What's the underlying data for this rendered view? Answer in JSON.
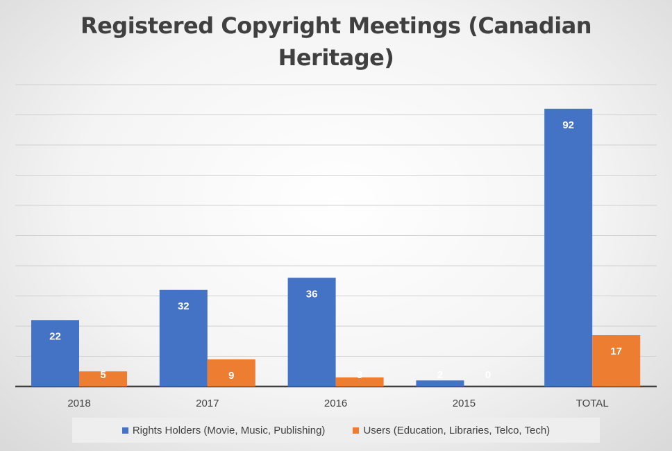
{
  "chart_data": {
    "type": "bar",
    "title": "Registered Copyright Meetings (Canadian Heritage)",
    "title_lines": [
      "Registered Copyright Meetings (Canadian",
      "Heritage)"
    ],
    "categories": [
      "2018",
      "2017",
      "2016",
      "2015",
      "TOTAL"
    ],
    "series": [
      {
        "name": "Rights Holders (Movie, Music, Publishing)",
        "values": [
          22,
          32,
          36,
          2,
          92
        ],
        "color": "#4472C4"
      },
      {
        "name": "Users (Education, Libraries, Telco, Tech)",
        "values": [
          5,
          9,
          3,
          0,
          17
        ],
        "color": "#ED7D31"
      }
    ],
    "ylim": [
      0,
      100
    ],
    "grid": true,
    "legend_position": "bottom",
    "data_labels": true
  }
}
